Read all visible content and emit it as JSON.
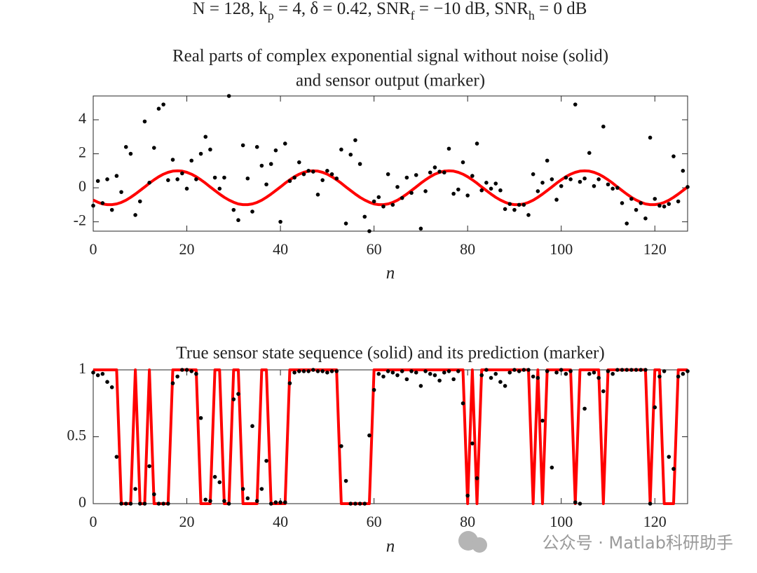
{
  "suptitle": [
    "N = 128, k",
    "p",
    " = 4, δ = 0.42, SNR",
    "f",
    " = −10 dB, SNR",
    "h",
    " = 0 dB"
  ],
  "watermark": "公众号 · Matlab科研助手",
  "chart_data": [
    {
      "type": "line",
      "title": [
        "Real parts of complex exponential signal without noise (solid)",
        "and sensor output (marker)"
      ],
      "xlabel": "n",
      "xlim": [
        0,
        127
      ],
      "xticks": [
        0,
        20,
        40,
        60,
        80,
        100,
        120
      ],
      "ylim": [
        -2.55,
        5.4
      ],
      "yticks": [
        -2,
        0,
        2,
        4
      ],
      "x": [
        0,
        1,
        2,
        3,
        4,
        5,
        6,
        7,
        8,
        9,
        10,
        11,
        12,
        13,
        14,
        15,
        16,
        17,
        18,
        19,
        20,
        21,
        22,
        23,
        24,
        25,
        26,
        27,
        28,
        29,
        30,
        31,
        32,
        33,
        34,
        35,
        36,
        37,
        38,
        39,
        40,
        41,
        42,
        43,
        44,
        45,
        46,
        47,
        48,
        49,
        50,
        51,
        52,
        53,
        54,
        55,
        56,
        57,
        58,
        59,
        60,
        61,
        62,
        63,
        64,
        65,
        66,
        67,
        68,
        69,
        70,
        71,
        72,
        73,
        74,
        75,
        76,
        77,
        78,
        79,
        80,
        81,
        82,
        83,
        84,
        85,
        86,
        87,
        88,
        89,
        90,
        91,
        92,
        93,
        94,
        95,
        96,
        97,
        98,
        99,
        100,
        101,
        102,
        103,
        104,
        105,
        106,
        107,
        108,
        109,
        110,
        111,
        112,
        113,
        114,
        115,
        116,
        117,
        118,
        119,
        120,
        121,
        122,
        123,
        124,
        125,
        126,
        127
      ],
      "series": [
        {
          "color": "#ff0000",
          "style": "solid",
          "values": [
            -0.72,
            -0.85,
            -0.95,
            -0.99,
            -0.99,
            -0.95,
            -0.86,
            -0.73,
            -0.56,
            -0.37,
            -0.16,
            0.05,
            0.27,
            0.47,
            0.65,
            0.8,
            0.91,
            0.98,
            1,
            0.98,
            0.91,
            0.8,
            0.65,
            0.47,
            0.27,
            0.05,
            -0.16,
            -0.37,
            -0.56,
            -0.72,
            -0.85,
            -0.95,
            -0.99,
            -0.99,
            -0.95,
            -0.86,
            -0.73,
            -0.56,
            -0.37,
            -0.16,
            0.05,
            0.27,
            0.47,
            0.65,
            0.8,
            0.91,
            0.98,
            1,
            0.98,
            0.91,
            0.8,
            0.65,
            0.47,
            0.27,
            0.05,
            -0.16,
            -0.37,
            -0.56,
            -0.72,
            -0.85,
            -0.95,
            -0.99,
            -0.99,
            -0.95,
            -0.86,
            -0.73,
            -0.56,
            -0.37,
            -0.16,
            0.05,
            0.27,
            0.47,
            0.65,
            0.8,
            0.91,
            0.98,
            1,
            0.98,
            0.91,
            0.8,
            0.65,
            0.47,
            0.27,
            0.05,
            -0.16,
            -0.37,
            -0.56,
            -0.72,
            -0.85,
            -0.95,
            -0.99,
            -0.99,
            -0.95,
            -0.86,
            -0.73,
            -0.56,
            -0.37,
            -0.16,
            0.05,
            0.27,
            0.47,
            0.65,
            0.8,
            0.91,
            0.98,
            1,
            0.98,
            0.91,
            0.8,
            0.65,
            0.47,
            0.27,
            0.05,
            -0.16,
            -0.37,
            -0.56,
            -0.72,
            -0.85,
            -0.95,
            -0.99,
            -0.99,
            -0.95,
            -0.86,
            -0.73,
            -0.56,
            -0.37,
            -0.16,
            0.05
          ]
        },
        {
          "color": "#000000",
          "style": "marker",
          "values": [
            -1.05,
            0.4,
            -0.9,
            0.5,
            -1.3,
            0.7,
            -0.25,
            2.4,
            2.0,
            -1.6,
            -0.8,
            3.9,
            0.3,
            2.35,
            4.65,
            4.9,
            0.45,
            1.65,
            0.5,
            0.85,
            -0.05,
            1.6,
            0.5,
            2.0,
            3.0,
            2.25,
            0.6,
            -0.05,
            0.6,
            5.4,
            -1.3,
            -1.9,
            2.5,
            0.55,
            -1.4,
            2.4,
            1.3,
            0.2,
            1.4,
            2.2,
            -2.0,
            2.6,
            0.4,
            0.6,
            1.5,
            0.8,
            1.0,
            0.95,
            -0.4,
            0.45,
            1.0,
            0.8,
            0.55,
            2.25,
            -2.1,
            1.95,
            2.8,
            1.4,
            -1.7,
            -2.55,
            -0.8,
            -0.55,
            -1.1,
            0.8,
            -1.0,
            0.05,
            -0.6,
            0.6,
            -0.3,
            0.75,
            -2.4,
            -0.2,
            0.9,
            1.2,
            0.95,
            0.9,
            2.3,
            -0.35,
            -0.1,
            1.5,
            -0.45,
            0.7,
            2.6,
            -0.15,
            0.3,
            -0.05,
            0.25,
            -0.15,
            -1.25,
            -0.95,
            -1.3,
            -1.0,
            -1.0,
            -1.6,
            0.8,
            -0.2,
            0.3,
            1.6,
            0.5,
            -0.7,
            0.1,
            0.6,
            0.5,
            4.9,
            0.35,
            0.55,
            2.05,
            0.1,
            0.5,
            3.6,
            0.2,
            -0.05,
            0.0,
            -0.9,
            -2.1,
            -0.65,
            -1.3,
            -0.9,
            -1.8,
            2.95,
            -0.65,
            -1.05,
            -1.1,
            -0.95,
            1.85,
            -0.8,
            1.0,
            0.05
          ]
        }
      ]
    },
    {
      "type": "line",
      "title": [
        "True sensor state sequence (solid) and its prediction (marker)"
      ],
      "xlabel": "n",
      "xlim": [
        0,
        127
      ],
      "xticks": [
        0,
        20,
        40,
        60,
        80,
        100,
        120
      ],
      "ylim": [
        0,
        1
      ],
      "yticks": [
        0,
        0.5,
        1
      ],
      "x": [
        0,
        1,
        2,
        3,
        4,
        5,
        6,
        7,
        8,
        9,
        10,
        11,
        12,
        13,
        14,
        15,
        16,
        17,
        18,
        19,
        20,
        21,
        22,
        23,
        24,
        25,
        26,
        27,
        28,
        29,
        30,
        31,
        32,
        33,
        34,
        35,
        36,
        37,
        38,
        39,
        40,
        41,
        42,
        43,
        44,
        45,
        46,
        47,
        48,
        49,
        50,
        51,
        52,
        53,
        54,
        55,
        56,
        57,
        58,
        59,
        60,
        61,
        62,
        63,
        64,
        65,
        66,
        67,
        68,
        69,
        70,
        71,
        72,
        73,
        74,
        75,
        76,
        77,
        78,
        79,
        80,
        81,
        82,
        83,
        84,
        85,
        86,
        87,
        88,
        89,
        90,
        91,
        92,
        93,
        94,
        95,
        96,
        97,
        98,
        99,
        100,
        101,
        102,
        103,
        104,
        105,
        106,
        107,
        108,
        109,
        110,
        111,
        112,
        113,
        114,
        115,
        116,
        117,
        118,
        119,
        120,
        121,
        122,
        123,
        124,
        125,
        126,
        127
      ],
      "series": [
        {
          "color": "#ff0000",
          "style": "solid",
          "values": [
            1,
            1,
            1,
            1,
            1,
            1,
            0,
            0,
            0,
            1,
            0,
            0,
            1,
            0,
            0,
            0,
            0,
            1,
            1,
            1,
            1,
            1,
            1,
            0,
            0,
            0,
            1,
            1,
            0,
            0,
            1,
            1,
            0,
            0,
            0,
            0,
            1,
            1,
            0,
            0,
            0,
            0,
            1,
            1,
            1,
            1,
            1,
            1,
            1,
            1,
            1,
            1,
            1,
            0,
            0,
            0,
            0,
            0,
            0,
            0,
            1,
            1,
            1,
            1,
            1,
            1,
            1,
            1,
            1,
            1,
            1,
            1,
            1,
            1,
            1,
            1,
            1,
            1,
            1,
            1,
            0,
            1,
            0,
            1,
            1,
            1,
            1,
            1,
            1,
            1,
            1,
            1,
            1,
            1,
            0,
            1,
            0,
            1,
            1,
            1,
            1,
            1,
            1,
            0,
            1,
            1,
            1,
            1,
            1,
            0,
            1,
            1,
            1,
            1,
            1,
            1,
            1,
            1,
            1,
            0,
            1,
            1,
            0,
            0,
            0,
            1,
            1,
            1
          ]
        },
        {
          "color": "#000000",
          "style": "marker",
          "values": [
            0.98,
            0.96,
            0.97,
            0.91,
            0.87,
            0.35,
            0,
            0,
            0,
            0.11,
            0,
            0,
            0.28,
            0.07,
            0,
            0,
            0,
            0.9,
            0.95,
            1,
            1,
            0.99,
            0.97,
            0.64,
            0.03,
            0.02,
            0.2,
            0.16,
            0.02,
            0,
            0.78,
            0.82,
            0.11,
            0.04,
            0.58,
            0.02,
            0.11,
            0.32,
            0,
            0.01,
            0.01,
            0.01,
            0.9,
            0.98,
            0.99,
            0.99,
            0.99,
            1,
            0.99,
            0.99,
            0.98,
            0.99,
            0.99,
            0.43,
            0.17,
            0,
            0,
            0,
            0,
            0.51,
            0.85,
            0.97,
            0.95,
            0.99,
            0.98,
            0.96,
            0.99,
            0.93,
            0.99,
            0.98,
            0.88,
            0.99,
            0.97,
            0.96,
            0.92,
            0.98,
            0.99,
            0.93,
            0.99,
            0.75,
            0.06,
            0.45,
            0.19,
            0.96,
            1,
            0.94,
            0.97,
            0.91,
            0.88,
            0.98,
            1,
            0.99,
            1,
            1,
            0.95,
            0.94,
            0.62,
            0.99,
            0.27,
            0.98,
            1,
            0.97,
            0.99,
            0.01,
            0,
            0.71,
            0.97,
            0.98,
            0.94,
            0.84,
            0.99,
            0.97,
            1,
            1,
            1,
            1,
            1,
            1,
            1,
            0,
            0.72,
            0.95,
            0.99,
            0.35,
            0.26,
            0.95,
            0.97,
            0.99
          ]
        }
      ]
    }
  ]
}
